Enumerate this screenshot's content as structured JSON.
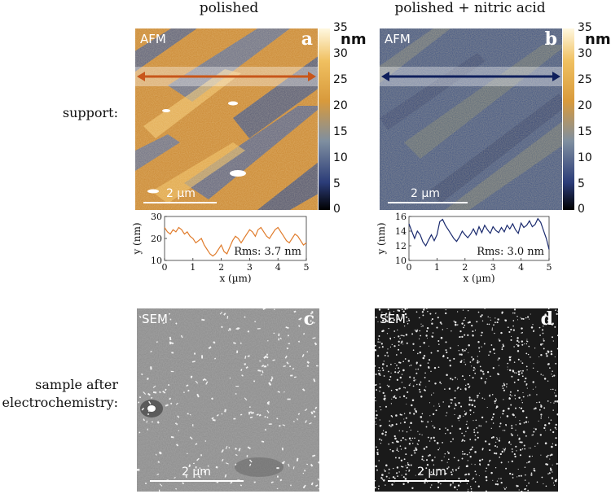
{
  "columns": {
    "left_title": "polished",
    "right_title": "polished + nitric acid"
  },
  "rows": {
    "support_label": "support:",
    "sample_label_line1": "sample after",
    "sample_label_line2": "electrochemistry:"
  },
  "panels": {
    "a": {
      "method": "AFM",
      "letter": "a",
      "scale_bar": "2 µm"
    },
    "b": {
      "method": "AFM",
      "letter": "b",
      "scale_bar": "2 µm"
    },
    "c": {
      "method": "SEM",
      "letter": "c",
      "scale_bar": "2 µm"
    },
    "d": {
      "method": "SEM",
      "letter": "d",
      "scale_bar": "2 µm"
    }
  },
  "colorbar": {
    "unit": "nm",
    "ticks": [
      "35",
      "30",
      "25",
      "20",
      "15",
      "10",
      "5",
      "0"
    ],
    "range": [
      0,
      35
    ],
    "colors": {
      "low": "#000000",
      "mid_low": "#2b3c78",
      "mid": "#7f8fa0",
      "mid_high": "#d89a3c",
      "high": "#fff8e0"
    }
  },
  "colors": {
    "left_arrow": "#c8561a",
    "right_arrow": "#0f1f5c",
    "left_profile": "#e07c2c",
    "right_profile": "#1a2a6e"
  },
  "chart_data": [
    {
      "type": "line",
      "panel": "a",
      "xlabel": "x (µm)",
      "ylabel": "y (nm)",
      "annotation": "Rms: 3.7 nm",
      "xlim": [
        0,
        5
      ],
      "ylim": [
        10,
        30
      ],
      "xticks": [
        "0",
        "1",
        "2",
        "3",
        "4",
        "5"
      ],
      "yticks": [
        "10",
        "20",
        "30"
      ],
      "x": [
        0,
        0.1,
        0.2,
        0.3,
        0.4,
        0.5,
        0.6,
        0.7,
        0.8,
        0.9,
        1.0,
        1.1,
        1.2,
        1.3,
        1.4,
        1.5,
        1.6,
        1.7,
        1.8,
        1.9,
        2.0,
        2.1,
        2.2,
        2.3,
        2.4,
        2.5,
        2.6,
        2.7,
        2.8,
        2.9,
        3.0,
        3.1,
        3.2,
        3.3,
        3.4,
        3.5,
        3.6,
        3.7,
        3.8,
        3.9,
        4.0,
        4.1,
        4.2,
        4.3,
        4.4,
        4.5,
        4.6,
        4.7,
        4.8,
        4.9,
        5.0
      ],
      "y": [
        25,
        23,
        22,
        24,
        23,
        25,
        24,
        22,
        23,
        21,
        20,
        18,
        19,
        20,
        17,
        15,
        13,
        12,
        13,
        15,
        17,
        14,
        13,
        16,
        19,
        21,
        20,
        18,
        20,
        22,
        24,
        23,
        21,
        24,
        25,
        23,
        21,
        20,
        22,
        24,
        25,
        23,
        21,
        19,
        18,
        20,
        22,
        21,
        19,
        17,
        18
      ]
    },
    {
      "type": "line",
      "panel": "b",
      "xlabel": "x (µm)",
      "ylabel": "y (nm)",
      "annotation": "Rms: 3.0 nm",
      "xlim": [
        0,
        5
      ],
      "ylim": [
        10,
        16
      ],
      "xticks": [
        "0",
        "1",
        "2",
        "3",
        "4",
        "5"
      ],
      "yticks": [
        "10",
        "12",
        "14",
        "16"
      ],
      "x": [
        0,
        0.1,
        0.2,
        0.3,
        0.4,
        0.5,
        0.6,
        0.7,
        0.8,
        0.9,
        1.0,
        1.1,
        1.2,
        1.3,
        1.4,
        1.5,
        1.6,
        1.7,
        1.8,
        1.9,
        2.0,
        2.1,
        2.2,
        2.3,
        2.4,
        2.5,
        2.6,
        2.7,
        2.8,
        2.9,
        3.0,
        3.1,
        3.2,
        3.3,
        3.4,
        3.5,
        3.6,
        3.7,
        3.8,
        3.9,
        4.0,
        4.1,
        4.2,
        4.3,
        4.4,
        4.5,
        4.6,
        4.7,
        4.8,
        4.9,
        5.0
      ],
      "y": [
        15,
        14,
        13,
        14,
        13.5,
        12.5,
        12,
        12.8,
        13.5,
        12.7,
        13.5,
        15.3,
        15.6,
        14.8,
        14.2,
        13.6,
        13,
        12.6,
        13.2,
        14,
        13.5,
        13.1,
        13.6,
        14.3,
        13.5,
        14.6,
        13.8,
        14.8,
        14.2,
        13.7,
        14.6,
        14.1,
        13.8,
        14.5,
        13.9,
        14.8,
        14.3,
        15,
        14.2,
        13.7,
        15.1,
        14.5,
        14.8,
        15.4,
        14.6,
        14.9,
        15.7,
        15.2,
        14.1,
        13,
        11.5
      ]
    }
  ]
}
